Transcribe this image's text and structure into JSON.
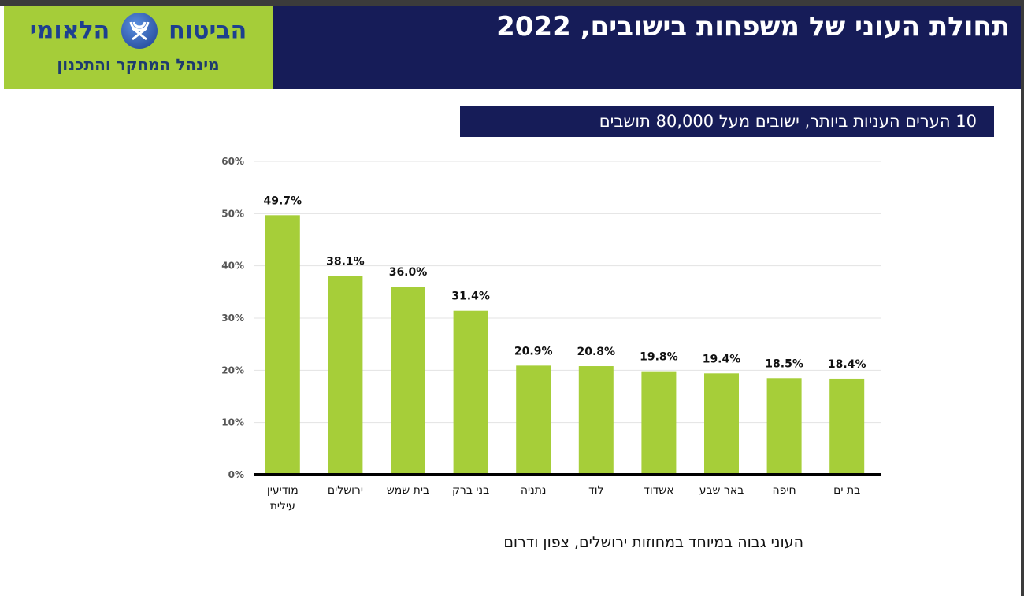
{
  "logo": {
    "name": "הביטוח הלאומי",
    "name_right": "הביטוח",
    "name_left": "הלאומי",
    "division": "מינהל המחקר והתכנון"
  },
  "header": {
    "title": "תחולת העוני של משפחות בישובים, 2022"
  },
  "subtitle": "10 הערים העניות ביותר, ישובים מעל 80,000 תושבים",
  "footnote": "העוני גבוה במיוחד במחוזות ירושלים, צפון ודרום",
  "colors": {
    "navy": "#161c58",
    "green": "#a5cd39",
    "bar": "#a6ce39"
  },
  "chart_data": {
    "type": "bar",
    "title": "10 הערים העניות ביותר, ישובים מעל 80,000 תושבים",
    "categories": [
      [
        "מודיעין",
        "עילית"
      ],
      [
        "ירושלים"
      ],
      [
        "בית שמש"
      ],
      [
        "בני ברק"
      ],
      [
        "נתניה"
      ],
      [
        "לוד"
      ],
      [
        "אשדוד"
      ],
      [
        "באר שבע"
      ],
      [
        "חיפה"
      ],
      [
        "בת ים"
      ]
    ],
    "values": [
      49.7,
      38.1,
      36.0,
      31.4,
      20.9,
      20.8,
      19.8,
      19.4,
      18.5,
      18.4
    ],
    "data_labels": [
      "49.7%",
      "38.1%",
      "36.0%",
      "31.4%",
      "20.9%",
      "20.8%",
      "19.8%",
      "19.4%",
      "18.5%",
      "18.4%"
    ],
    "yticks": [
      0,
      10,
      20,
      30,
      40,
      50,
      60
    ],
    "ytick_labels": [
      "0%",
      "10%",
      "20%",
      "30%",
      "40%",
      "50%",
      "60%"
    ],
    "ylim": [
      0,
      60
    ],
    "xlabel": "",
    "ylabel": "",
    "grid": true,
    "legend": "none"
  }
}
